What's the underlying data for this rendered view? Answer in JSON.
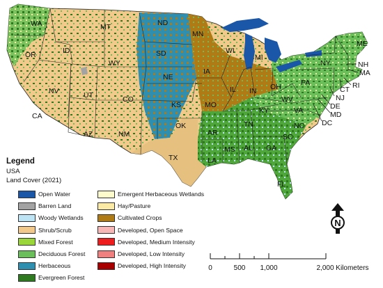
{
  "map": {
    "state_labels": [
      "WA",
      "OR",
      "CA",
      "NV",
      "ID",
      "MT",
      "WY",
      "UT",
      "AZ",
      "CO",
      "NM",
      "ND",
      "SD",
      "NE",
      "KS",
      "OK",
      "TX",
      "MN",
      "IA",
      "MO",
      "AR",
      "LA",
      "WI",
      "IL",
      "MI",
      "IN",
      "OH",
      "KY",
      "TN",
      "MS",
      "AL",
      "GA",
      "FL",
      "SC",
      "NC",
      "VA",
      "WV",
      "PA",
      "NY",
      "ME",
      "NH",
      "MA",
      "RI",
      "CT",
      "NJ",
      "DE",
      "MD",
      "DC"
    ],
    "colors": {
      "open_water": "#1b57a8",
      "background": "#ffffff"
    }
  },
  "legend": {
    "title": "Legend",
    "region": "USA",
    "subtitle": "Land Cover (2021)",
    "items": [
      {
        "label": "Open Water",
        "color": "#1b57a8"
      },
      {
        "label": "Barren Land",
        "color": "#a3a3a3"
      },
      {
        "label": "Woody Wetlands",
        "color": "#bde4f4"
      },
      {
        "label": "Shrub/Scrub",
        "color": "#f2c98a"
      },
      {
        "label": "Mixed Forest",
        "color": "#9ad63a"
      },
      {
        "label": "Deciduous Forest",
        "color": "#6bbf5b"
      },
      {
        "label": "Herbaceous",
        "color": "#2e8fb0"
      },
      {
        "label": "Evergreen Forest",
        "color": "#2d7a1f"
      },
      {
        "label": "Emergent Herbaceous Wetlands",
        "color": "#fdfbcb"
      },
      {
        "label": "Hay/Pasture",
        "color": "#fbe9a6"
      },
      {
        "label": "Cultivated Crops",
        "color": "#b07a15"
      },
      {
        "label": "Developed, Open Space",
        "color": "#f7b7b7"
      },
      {
        "label": "Developed, Medium Intensity",
        "color": "#ee1c1c"
      },
      {
        "label": "Developed, Low Intensity",
        "color": "#f08080"
      },
      {
        "label": "Developed, High Intensity",
        "color": "#a80000"
      }
    ]
  },
  "north_arrow": {
    "letter": "N"
  },
  "scale": {
    "ticks": [
      "0",
      "500",
      "1,000",
      "2,000 Kilometers"
    ]
  }
}
